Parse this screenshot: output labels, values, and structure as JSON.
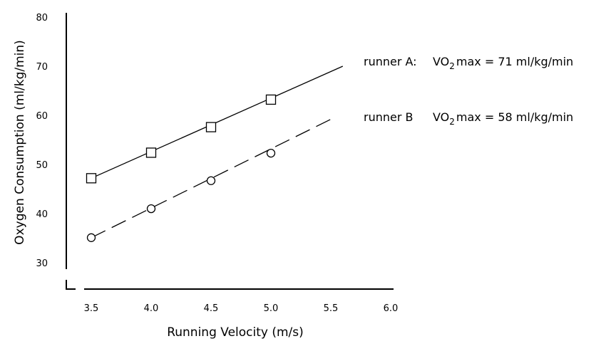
{
  "chart_data": {
    "type": "line",
    "xlabel": "Running Velocity (m/s)",
    "ylabel": "Oxygen Consumption (ml/kg/min)",
    "xlim": [
      3.5,
      6.0
    ],
    "ylim": [
      30,
      80
    ],
    "x_ticks": [
      "3.5",
      "4.0",
      "4.5",
      "5.0",
      "5.5",
      "6.0"
    ],
    "y_ticks": [
      "30",
      "40",
      "50",
      "60",
      "70",
      "80"
    ],
    "grid": false,
    "series": [
      {
        "name": "runner A",
        "marker": "square",
        "line_style": "solid",
        "x": [
          3.5,
          4.0,
          4.5,
          5.0
        ],
        "y": [
          47.2,
          52.4,
          57.6,
          63.2
        ],
        "fit_line": {
          "x": [
            3.5,
            5.6
          ],
          "y": [
            47.2,
            70.0
          ]
        },
        "annotation": {
          "prefix": "runner A",
          "separator": ":",
          "vo2": "VO",
          "sub": "2",
          "rest": "max = 71 ml/kg/min"
        }
      },
      {
        "name": "runner B",
        "marker": "circle",
        "line_style": "dashed",
        "x": [
          3.5,
          4.0,
          4.5,
          5.0
        ],
        "y": [
          35.1,
          41.0,
          46.7,
          52.3
        ],
        "fit_line": {
          "x": [
            3.5,
            5.5
          ],
          "y": [
            35.1,
            59.2
          ]
        },
        "annotation": {
          "prefix": "runner B",
          "separator": "",
          "vo2": "VO",
          "sub": "2",
          "rest": "max = 58 ml/kg/min"
        }
      }
    ]
  }
}
